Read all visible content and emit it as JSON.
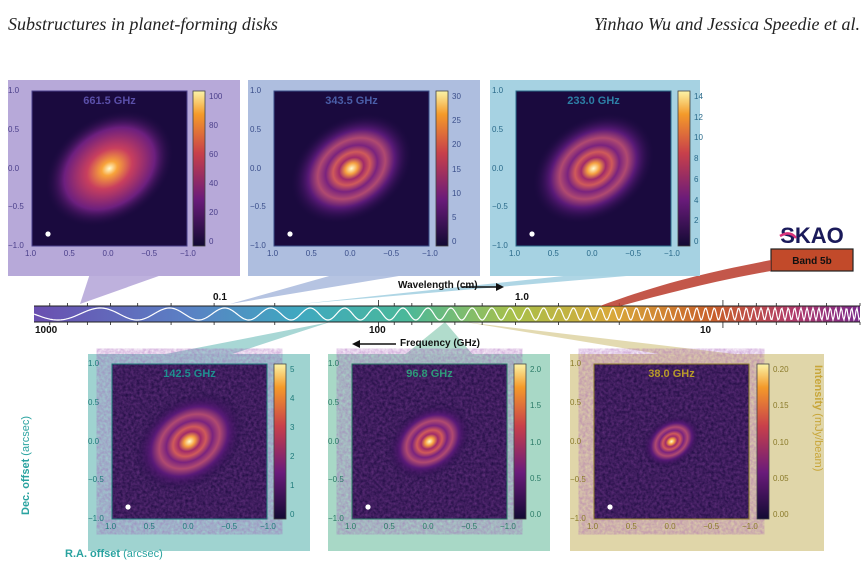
{
  "header": {
    "left": "Substructures in planet-forming disks",
    "right": "Yinhao Wu and Jessica Speedie et al."
  },
  "spectrum": {
    "wavelength_label": "Wavelength (cm)",
    "frequency_label": "Frequency (GHz)",
    "wavelength_ticks": [
      "0.1",
      "1.0"
    ],
    "frequency_ticks": [
      "1000",
      "100",
      "10"
    ]
  },
  "ska": {
    "logo_text": "SKAO",
    "band_label": "Band 5b"
  },
  "axes": {
    "ra_label": "R.A. offset",
    "ra_unit": "(arcsec)",
    "dec_label": "Dec. offset",
    "dec_unit": "(arcsec)",
    "intensity_label": "Intensity",
    "intensity_unit": "(mJy/beam)",
    "x_ticks": [
      "1.0",
      "0.5",
      "0.0",
      "−0.5",
      "−1.0"
    ],
    "y_ticks": [
      "1.0",
      "0.5",
      "0.0",
      "−0.5",
      "−1.0"
    ]
  },
  "panels": [
    {
      "freq": "661.5 GHz",
      "bg": "#b7a9d9",
      "title_color": "#5a4fa8",
      "tick_color": "#4a3f8a",
      "cbar_ticks": [
        "100",
        "80",
        "60",
        "40",
        "20",
        "0"
      ]
    },
    {
      "freq": "343.5 GHz",
      "bg": "#aebedf",
      "title_color": "#4a5ea8",
      "tick_color": "#3a4e8a",
      "cbar_ticks": [
        "30",
        "25",
        "20",
        "15",
        "10",
        "5",
        "0"
      ]
    },
    {
      "freq": "233.0 GHz",
      "bg": "#a6d2e2",
      "title_color": "#2d7fa6",
      "tick_color": "#2a6a8a",
      "cbar_ticks": [
        "14",
        "12",
        "10",
        "8",
        "6",
        "4",
        "2",
        "0"
      ]
    },
    {
      "freq": "142.5 GHz",
      "bg": "#9fd3d0",
      "title_color": "#1f8f8f",
      "tick_color": "#1f7a7a",
      "cbar_ticks": [
        "5",
        "4",
        "3",
        "2",
        "1",
        "0"
      ]
    },
    {
      "freq": "96.8 GHz",
      "bg": "#a8d8c6",
      "title_color": "#2f9a7a",
      "tick_color": "#2a7a66",
      "cbar_ticks": [
        "2.0",
        "1.5",
        "1.0",
        "0.5",
        "0.0"
      ]
    },
    {
      "freq": "38.0 GHz",
      "bg": "#e0d6a9",
      "title_color": "#b89a2a",
      "tick_color": "#8a7a2a",
      "cbar_ticks": [
        "0.20",
        "0.15",
        "0.10",
        "0.05",
        "0.00"
      ]
    }
  ]
}
